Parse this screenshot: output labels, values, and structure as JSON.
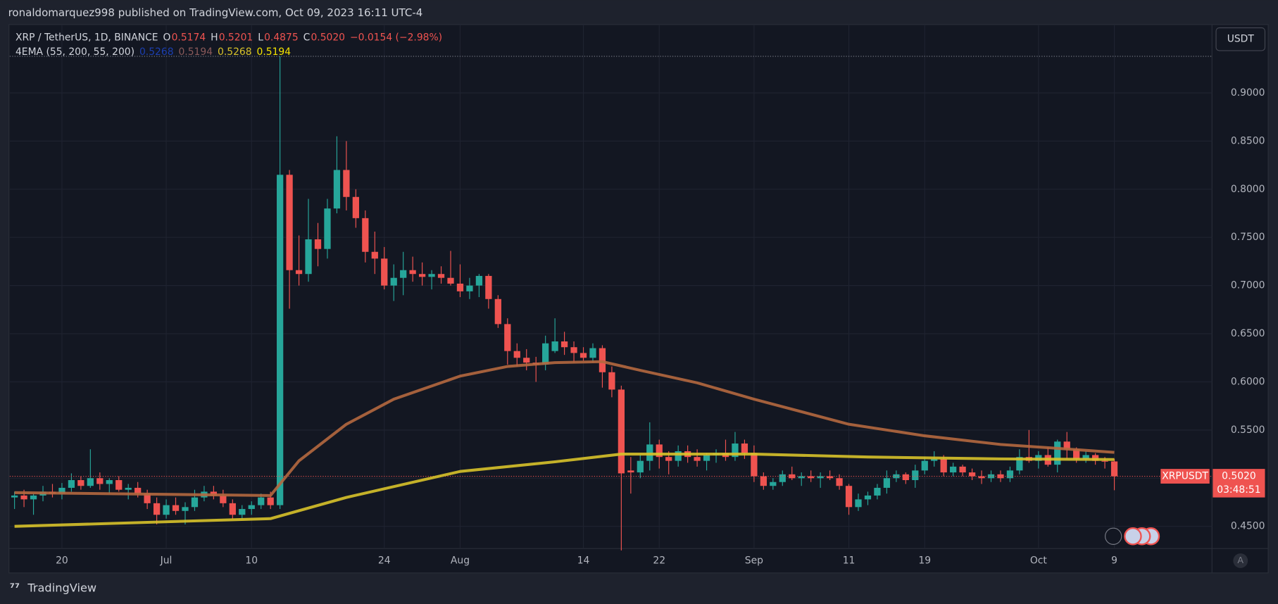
{
  "header": {
    "publisher": "ronaldomarquez998 published on TradingView.com, Oct 09, 2023 16:11 UTC-4",
    "brand": "TradingView"
  },
  "legend": {
    "symbol": "XRP / TetherUS, 1D, BINANCE",
    "o_label": "O",
    "o": "0.5174",
    "h_label": "H",
    "h": "0.5201",
    "l_label": "L",
    "l": "0.4875",
    "c_label": "C",
    "c": "0.5020",
    "change": "−0.0154 (−2.98%)",
    "indicator": "4EMA (55, 200, 55, 200)",
    "indicator_values": [
      {
        "text": "0.5268",
        "color": "#1c3fb0"
      },
      {
        "text": "0.5194",
        "color": "#8a5a5a"
      },
      {
        "text": "0.5268",
        "color": "#d8c22a"
      },
      {
        "text": "0.5194",
        "color": "#f5e400"
      }
    ]
  },
  "currency": "USDT",
  "price_tag": {
    "symbol": "XRPUSDT",
    "price": "0.5020",
    "countdown": "03:48:51"
  },
  "auto_button": "A",
  "chart_data": {
    "type": "candlestick",
    "up_color": "#26a69a",
    "down_color": "#ef5350",
    "grid": true,
    "open": [
      0.48,
      0.482,
      0.478,
      0.482,
      0.486,
      0.484,
      0.49,
      0.498,
      0.492,
      0.5,
      0.494,
      0.498,
      0.488,
      0.49,
      0.484,
      0.474,
      0.462,
      0.472,
      0.466,
      0.47,
      0.48,
      0.486,
      0.482,
      0.474,
      0.462,
      0.468,
      0.472,
      0.48,
      0.472,
      0.815,
      0.716,
      0.712,
      0.748,
      0.738,
      0.78,
      0.82,
      0.792,
      0.77,
      0.735,
      0.728,
      0.7,
      0.708,
      0.716,
      0.712,
      0.709,
      0.712,
      0.708,
      0.702,
      0.694,
      0.7,
      0.71,
      0.686,
      0.66,
      0.632,
      0.625,
      0.62,
      0.618,
      0.632,
      0.642,
      0.636,
      0.63,
      0.625,
      0.635,
      0.61,
      0.592,
      0.508,
      0.506,
      0.518,
      0.535,
      0.522,
      0.518,
      0.528,
      0.522,
      0.518,
      0.524,
      0.526,
      0.522,
      0.536,
      0.526,
      0.502,
      0.492,
      0.496,
      0.504,
      0.5,
      0.502,
      0.5,
      0.502,
      0.5,
      0.492,
      0.47,
      0.478,
      0.482,
      0.49,
      0.5,
      0.504,
      0.498,
      0.508,
      0.518,
      0.52,
      0.506,
      0.512,
      0.506,
      0.502,
      0.5,
      0.504,
      0.5,
      0.508,
      0.522,
      0.518,
      0.524,
      0.514,
      0.538,
      0.53,
      0.52,
      0.524,
      0.518,
      0.5174
    ],
    "high": [
      0.486,
      0.488,
      0.484,
      0.492,
      0.494,
      0.495,
      0.505,
      0.502,
      0.53,
      0.506,
      0.5,
      0.502,
      0.494,
      0.496,
      0.488,
      0.48,
      0.478,
      0.48,
      0.475,
      0.488,
      0.492,
      0.492,
      0.488,
      0.478,
      0.472,
      0.476,
      0.484,
      0.486,
      0.938,
      0.82,
      0.752,
      0.79,
      0.765,
      0.79,
      0.855,
      0.85,
      0.8,
      0.778,
      0.756,
      0.74,
      0.722,
      0.735,
      0.73,
      0.724,
      0.716,
      0.72,
      0.736,
      0.722,
      0.708,
      0.712,
      0.712,
      0.69,
      0.666,
      0.64,
      0.634,
      0.626,
      0.648,
      0.666,
      0.652,
      0.642,
      0.636,
      0.64,
      0.638,
      0.616,
      0.596,
      0.522,
      0.524,
      0.558,
      0.54,
      0.528,
      0.534,
      0.534,
      0.53,
      0.526,
      0.53,
      0.54,
      0.548,
      0.54,
      0.534,
      0.506,
      0.5,
      0.508,
      0.512,
      0.506,
      0.508,
      0.506,
      0.508,
      0.504,
      0.494,
      0.484,
      0.486,
      0.494,
      0.508,
      0.508,
      0.506,
      0.514,
      0.522,
      0.528,
      0.524,
      0.516,
      0.514,
      0.51,
      0.508,
      0.508,
      0.508,
      0.512,
      0.53,
      0.55,
      0.528,
      0.532,
      0.54,
      0.548,
      0.532,
      0.528,
      0.526,
      0.522,
      0.5201
    ],
    "low": [
      0.468,
      0.47,
      0.462,
      0.476,
      0.48,
      0.478,
      0.486,
      0.488,
      0.49,
      0.488,
      0.484,
      0.486,
      0.478,
      0.48,
      0.468,
      0.452,
      0.458,
      0.462,
      0.452,
      0.466,
      0.476,
      0.478,
      0.47,
      0.458,
      0.458,
      0.462,
      0.468,
      0.468,
      0.468,
      0.676,
      0.7,
      0.704,
      0.72,
      0.728,
      0.775,
      0.778,
      0.76,
      0.724,
      0.712,
      0.696,
      0.684,
      0.69,
      0.704,
      0.7,
      0.696,
      0.702,
      0.7,
      0.688,
      0.686,
      0.688,
      0.676,
      0.656,
      0.618,
      0.616,
      0.612,
      0.6,
      0.612,
      0.63,
      0.628,
      0.62,
      0.622,
      0.62,
      0.594,
      0.584,
      0.425,
      0.484,
      0.5,
      0.508,
      0.51,
      0.504,
      0.512,
      0.516,
      0.512,
      0.508,
      0.516,
      0.518,
      0.518,
      0.52,
      0.496,
      0.488,
      0.488,
      0.492,
      0.498,
      0.492,
      0.496,
      0.49,
      0.498,
      0.488,
      0.462,
      0.466,
      0.472,
      0.478,
      0.484,
      0.496,
      0.494,
      0.49,
      0.504,
      0.512,
      0.502,
      0.502,
      0.502,
      0.498,
      0.494,
      0.496,
      0.496,
      0.496,
      0.504,
      0.516,
      0.51,
      0.512,
      0.506,
      0.52,
      0.516,
      0.516,
      0.514,
      0.51,
      0.4875
    ],
    "close": [
      0.482,
      0.478,
      0.482,
      0.486,
      0.484,
      0.49,
      0.498,
      0.492,
      0.5,
      0.494,
      0.498,
      0.488,
      0.49,
      0.484,
      0.474,
      0.462,
      0.472,
      0.466,
      0.47,
      0.48,
      0.486,
      0.482,
      0.474,
      0.462,
      0.468,
      0.472,
      0.48,
      0.472,
      0.815,
      0.716,
      0.712,
      0.748,
      0.738,
      0.78,
      0.82,
      0.792,
      0.77,
      0.735,
      0.728,
      0.7,
      0.708,
      0.716,
      0.712,
      0.709,
      0.712,
      0.708,
      0.702,
      0.694,
      0.7,
      0.71,
      0.686,
      0.66,
      0.632,
      0.625,
      0.62,
      0.618,
      0.64,
      0.642,
      0.636,
      0.63,
      0.625,
      0.635,
      0.61,
      0.592,
      0.505,
      0.506,
      0.518,
      0.535,
      0.522,
      0.518,
      0.528,
      0.522,
      0.518,
      0.524,
      0.526,
      0.522,
      0.536,
      0.526,
      0.502,
      0.492,
      0.496,
      0.504,
      0.5,
      0.502,
      0.5,
      0.502,
      0.5,
      0.492,
      0.47,
      0.478,
      0.482,
      0.49,
      0.5,
      0.504,
      0.498,
      0.508,
      0.518,
      0.52,
      0.506,
      0.512,
      0.506,
      0.502,
      0.5,
      0.504,
      0.5,
      0.508,
      0.522,
      0.518,
      0.524,
      0.514,
      0.538,
      0.53,
      0.52,
      0.524,
      0.518,
      0.5174,
      0.502
    ],
    "series": [
      {
        "color": "#b5683f",
        "x": [
          0,
          27,
          30,
          35,
          40,
          47,
          52,
          57,
          62,
          66,
          72,
          78,
          88,
          96,
          104,
          110,
          116
        ],
        "values": [
          0.485,
          0.482,
          0.518,
          0.556,
          0.582,
          0.606,
          0.616,
          0.62,
          0.621,
          0.612,
          0.599,
          0.582,
          0.556,
          0.544,
          0.535,
          0.531,
          0.5268
        ]
      },
      {
        "color": "#d8c22a",
        "x": [
          0,
          27,
          35,
          47,
          57,
          64,
          78,
          90,
          104,
          116
        ],
        "values": [
          0.45,
          0.458,
          0.48,
          0.507,
          0.517,
          0.525,
          0.525,
          0.522,
          0.52,
          0.5194
        ]
      }
    ],
    "xlim": [
      -0.5,
      126.3
    ],
    "ylim": [
      0.427,
      0.971
    ],
    "xticks": [
      {
        "value": 5,
        "label": "20"
      },
      {
        "value": 16,
        "label": "Jul"
      },
      {
        "value": 25,
        "label": "10"
      },
      {
        "value": 39,
        "label": "24"
      },
      {
        "value": 47,
        "label": "Aug"
      },
      {
        "value": 60,
        "label": "14"
      },
      {
        "value": 68,
        "label": "22"
      },
      {
        "value": 78,
        "label": "Sep"
      },
      {
        "value": 88,
        "label": "11"
      },
      {
        "value": 96,
        "label": "19"
      },
      {
        "value": 108,
        "label": "Oct"
      },
      {
        "value": 116,
        "label": "9"
      }
    ],
    "yticks": [
      {
        "value": 0.45,
        "label": "0.4500"
      },
      {
        "value": 0.5,
        "label": "0.5000"
      },
      {
        "value": 0.55,
        "label": "0.5500"
      },
      {
        "value": 0.6,
        "label": "0.6000"
      },
      {
        "value": 0.65,
        "label": "0.6500"
      },
      {
        "value": 0.7,
        "label": "0.7000"
      },
      {
        "value": 0.75,
        "label": "0.7500"
      },
      {
        "value": 0.8,
        "label": "0.8000"
      },
      {
        "value": 0.85,
        "label": "0.8500"
      },
      {
        "value": 0.9,
        "label": "0.9000"
      }
    ]
  }
}
